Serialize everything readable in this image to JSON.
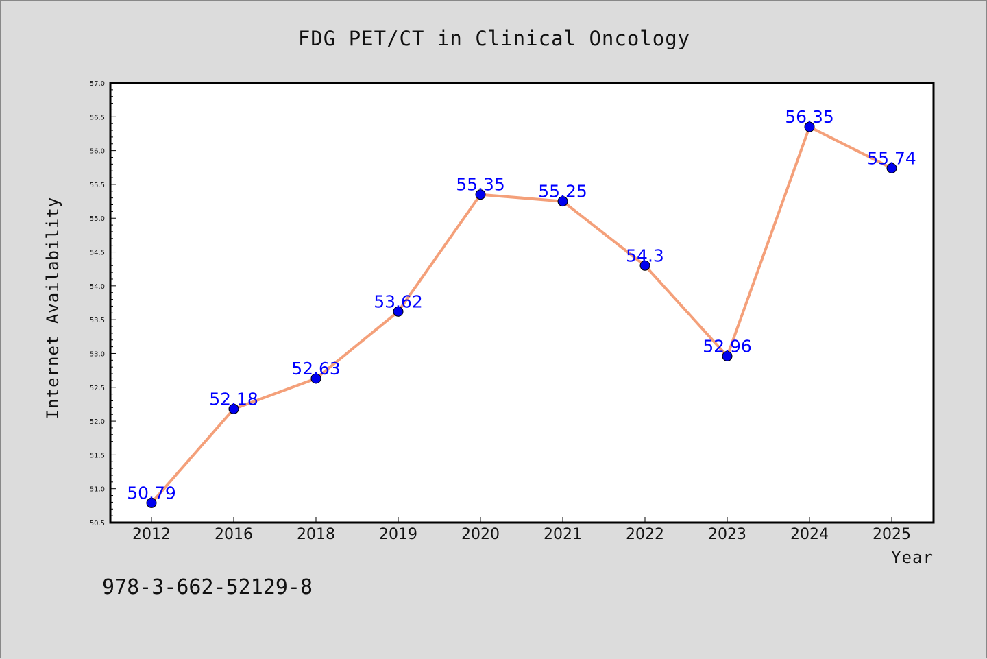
{
  "footer_text": "978-3-662-52129-8",
  "chart_data": {
    "type": "line",
    "title": "FDG PET/CT in Clinical Oncology",
    "xlabel": "Year",
    "ylabel": "Internet Availability",
    "categories": [
      "2012",
      "2016",
      "2018",
      "2019",
      "2020",
      "2021",
      "2022",
      "2023",
      "2024",
      "2025"
    ],
    "values": [
      50.79,
      52.18,
      52.63,
      53.62,
      55.35,
      55.25,
      54.3,
      52.96,
      56.35,
      55.74
    ],
    "data_labels": [
      "50.79",
      "52.18",
      "52.63",
      "53.62",
      "55.35",
      "55.25",
      "54.3",
      "52.96",
      "56.35",
      "55.74"
    ],
    "ylim": [
      50.5,
      57.0
    ],
    "yticks": [
      "50.5",
      "51.0",
      "51.5",
      "52.0",
      "52.5",
      "53.0",
      "53.5",
      "54.0",
      "54.5",
      "55.0",
      "55.5",
      "56.0",
      "56.5",
      "57.0"
    ],
    "grid": false,
    "legend": "none",
    "colors": {
      "line": "#f4a07a",
      "marker": "#0000ee",
      "data_label": "#0000ff",
      "plot_bg": "#ffffff",
      "page_bg": "#dcdcdc"
    }
  }
}
